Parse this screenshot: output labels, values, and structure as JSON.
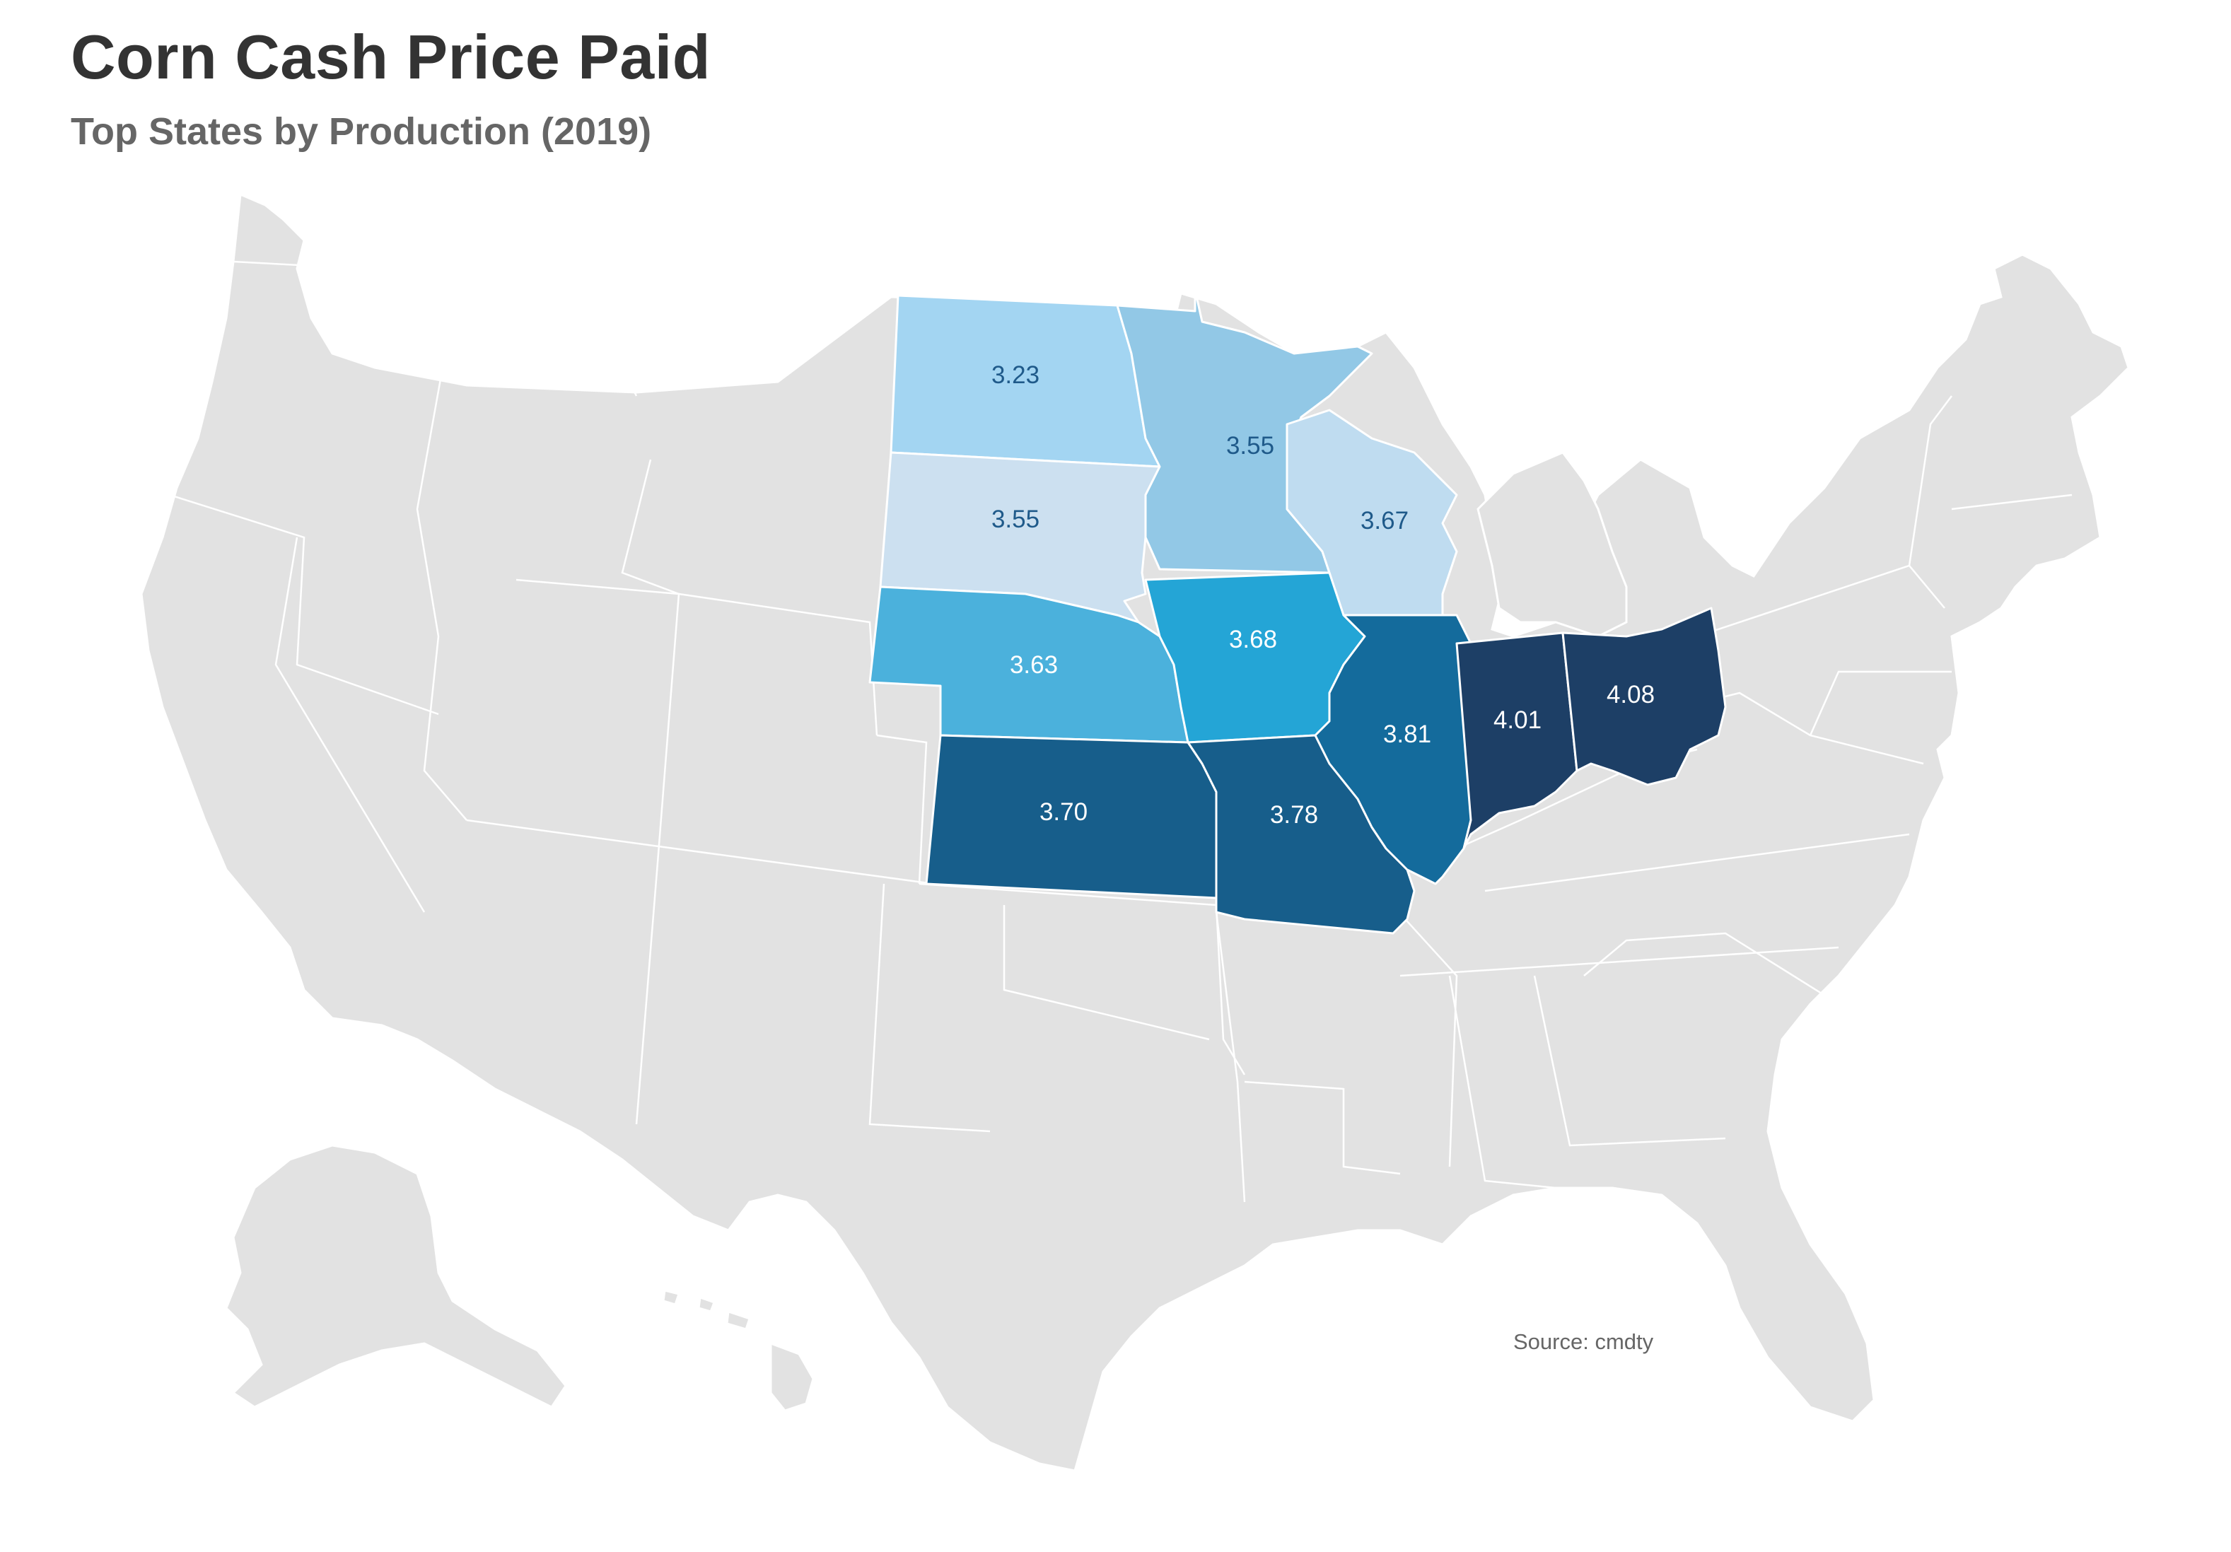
{
  "title": "Corn Cash Price Paid",
  "subtitle": "Top States by Production (2019)",
  "source": "Source: cmdty",
  "colors": {
    "land": "#e2e2e2",
    "border": "#ffffff",
    "title": "#333333",
    "subtitle": "#666666"
  },
  "states": [
    {
      "id": "nd",
      "name": "North Dakota",
      "value": "3.23",
      "color": "#a3d5f2",
      "label_color": "#1f5a8a"
    },
    {
      "id": "sd",
      "name": "South Dakota",
      "value": "3.55",
      "color": "#cce0f0",
      "label_color": "#1f5a8a"
    },
    {
      "id": "mn",
      "name": "Minnesota",
      "value": "3.55",
      "color": "#92c8e6",
      "label_color": "#1f5a8a"
    },
    {
      "id": "wi",
      "name": "Wisconsin",
      "value": "3.67",
      "color": "#bfdcf0",
      "label_color": "#1f5a8a"
    },
    {
      "id": "ne",
      "name": "Nebraska",
      "value": "3.63",
      "color": "#4bb1dc",
      "label_color": "#ffffff"
    },
    {
      "id": "ia",
      "name": "Iowa",
      "value": "3.68",
      "color": "#24a5d6",
      "label_color": "#ffffff"
    },
    {
      "id": "ks",
      "name": "Kansas",
      "value": "3.70",
      "color": "#175e8b",
      "label_color": "#ffffff"
    },
    {
      "id": "mo",
      "name": "Missouri",
      "value": "3.78",
      "color": "#175e8b",
      "label_color": "#ffffff"
    },
    {
      "id": "il",
      "name": "Illinois",
      "value": "3.81",
      "color": "#146b9c",
      "label_color": "#ffffff"
    },
    {
      "id": "in",
      "name": "Indiana",
      "value": "4.01",
      "color": "#1d3f66",
      "label_color": "#ffffff"
    },
    {
      "id": "oh",
      "name": "Ohio",
      "value": "4.08",
      "color": "#1d3f66",
      "label_color": "#ffffff"
    }
  ]
}
